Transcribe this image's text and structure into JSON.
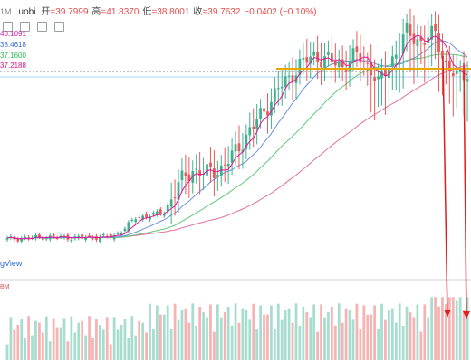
{
  "header": {
    "timeframe": "1M",
    "symbol": "uobi",
    "open_label": "开",
    "open": "=39.7999",
    "high_label": "高",
    "high": "=41.8370",
    "low_label": "低",
    "low": "=38.8001",
    "close_label": "收",
    "close": "=39.7632",
    "change": "−0.0402 (−0.10%)"
  },
  "ma_values": [
    "40.1091",
    "38.4618",
    "37.1600",
    "37.2188"
  ],
  "watermark": "gView",
  "volume_label": "BM",
  "colors": {
    "up": "#3fb08d",
    "down": "#e85a5a",
    "volume_up": "#a7ddcf",
    "volume_down": "#f6b3b3",
    "ma_short": "#e0149b",
    "ma_mid": "#6b8fe0",
    "ma_long": "#5dcb78",
    "ma_very_long": "#e36fa0",
    "horizontal_level": "#e9a800",
    "arrow": "#e01e1e"
  },
  "chart_data": {
    "type": "candlestick",
    "title": "",
    "xlabel": "",
    "ylabel": "",
    "ylim": [
      10,
      46
    ],
    "horizontal_level": 38.8,
    "dashed_reference": 38.4,
    "anchors": [
      {
        "i": 0,
        "p": 14.6
      },
      {
        "i": 10,
        "p": 14.9
      },
      {
        "i": 20,
        "p": 14.8
      },
      {
        "i": 30,
        "p": 15.0
      },
      {
        "i": 33,
        "p": 16.2
      },
      {
        "i": 36,
        "p": 17.6
      },
      {
        "i": 40,
        "p": 18.0
      },
      {
        "i": 44,
        "p": 18.4
      },
      {
        "i": 48,
        "p": 22.4
      },
      {
        "i": 52,
        "p": 24.4
      },
      {
        "i": 56,
        "p": 24.0
      },
      {
        "i": 60,
        "p": 24.6
      },
      {
        "i": 64,
        "p": 27.0
      },
      {
        "i": 68,
        "p": 30.0
      },
      {
        "i": 72,
        "p": 32.8
      },
      {
        "i": 76,
        "p": 36.0
      },
      {
        "i": 79,
        "p": 37.4
      },
      {
        "i": 82,
        "p": 39.4
      },
      {
        "i": 86,
        "p": 40.6
      },
      {
        "i": 90,
        "p": 40.0
      },
      {
        "i": 94,
        "p": 39.2
      },
      {
        "i": 98,
        "p": 40.8
      },
      {
        "i": 102,
        "p": 38.8
      },
      {
        "i": 104,
        "p": 36.6
      },
      {
        "i": 108,
        "p": 40.2
      },
      {
        "i": 112,
        "p": 44.0
      },
      {
        "i": 116,
        "p": 42.6
      },
      {
        "i": 120,
        "p": 43.8
      },
      {
        "i": 123,
        "p": 39.2
      },
      {
        "i": 126,
        "p": 37.6
      },
      {
        "i": 129,
        "p": 38.4
      }
    ],
    "candle_count": 130
  }
}
